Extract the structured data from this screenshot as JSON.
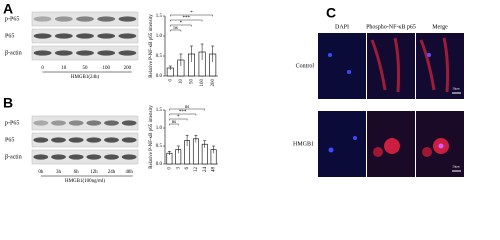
{
  "panel_labels": [
    "A",
    "B",
    "C"
  ],
  "blot_a": {
    "rows": [
      "p-P65",
      "P65",
      "β-actin"
    ],
    "lanes": [
      "0",
      "10",
      "50",
      "100",
      "200"
    ],
    "caption": "HMGB1(24h)"
  },
  "blot_b": {
    "rows": [
      "p-P65",
      "P65",
      "β-actin"
    ],
    "lanes": [
      "0h",
      "3h",
      "6h",
      "12h",
      "24h",
      "48h"
    ],
    "caption": "HMGB1(100ng/ml)"
  },
  "chart_data": [
    {
      "type": "bar",
      "y_label": "Relative P-NF-κB p65 intensity",
      "categories": [
        "0",
        "10",
        "50",
        "100",
        "200"
      ],
      "values": [
        0.2,
        0.4,
        0.55,
        0.6,
        0.55
      ],
      "errors": [
        0.05,
        0.15,
        0.2,
        0.2,
        0.2
      ],
      "color": "#ffffff",
      "ylim": [
        0,
        1.5
      ],
      "yticks": [
        {
          "value": 0,
          "label": "0.0"
        },
        {
          "value": 0.5,
          "label": "0.5"
        },
        {
          "value": 1,
          "label": "1.0"
        },
        {
          "value": 1.5,
          "label": "1.5"
        }
      ],
      "significance": [
        "ns",
        "*",
        "***",
        "*"
      ]
    },
    {
      "type": "bar",
      "y_label": "Relative P-NF-κB p65 intensity",
      "categories": [
        "0",
        "3",
        "6",
        "12",
        "24",
        "48"
      ],
      "values": [
        0.3,
        0.4,
        0.65,
        0.7,
        0.55,
        0.4
      ],
      "errors": [
        0.05,
        0.1,
        0.15,
        0.1,
        0.1,
        0.1
      ],
      "color": "#ffffff",
      "ylim": [
        0,
        1.5
      ],
      "yticks": [
        {
          "value": 0,
          "label": "0.0"
        },
        {
          "value": 0.5,
          "label": "0.5"
        },
        {
          "value": 1,
          "label": "1.0"
        },
        {
          "value": 1.5,
          "label": "1.5"
        }
      ],
      "significance": [
        "ns",
        "*",
        "***",
        "ns"
      ]
    }
  ],
  "images": {
    "columns": [
      "DAPI",
      "Phospho-NF-κB p65",
      "Merge"
    ],
    "rows": [
      "Control",
      "HMGB1"
    ],
    "scale_bar": "50μm"
  }
}
